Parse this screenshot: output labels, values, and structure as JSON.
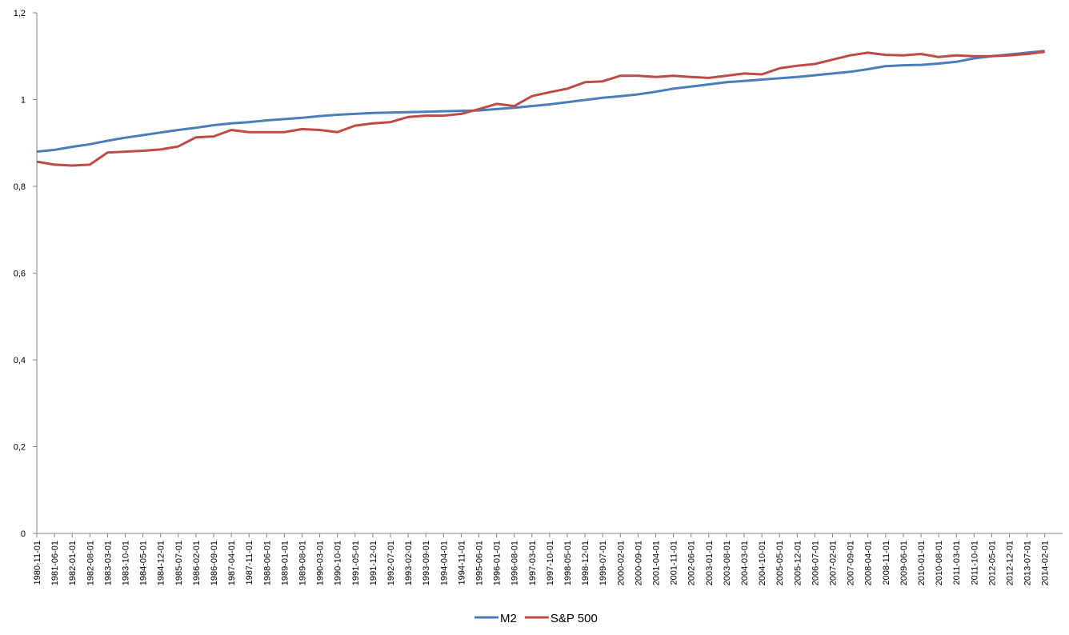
{
  "chart_data": {
    "type": "line",
    "categories": [
      "1980-11-01",
      "1981-06-01",
      "1982-01-01",
      "1982-08-01",
      "1983-03-01",
      "1983-10-01",
      "1984-05-01",
      "1984-12-01",
      "1985-07-01",
      "1986-02-01",
      "1986-09-01",
      "1987-04-01",
      "1987-11-01",
      "1988-06-01",
      "1989-01-01",
      "1989-08-01",
      "1990-03-01",
      "1990-10-01",
      "1991-05-01",
      "1991-12-01",
      "1992-07-01",
      "1993-02-01",
      "1993-09-01",
      "1994-04-01",
      "1994-11-01",
      "1995-06-01",
      "1996-01-01",
      "1996-08-01",
      "1997-03-01",
      "1997-10-01",
      "1998-05-01",
      "1998-12-01",
      "1999-07-01",
      "2000-02-01",
      "2000-09-01",
      "2001-04-01",
      "2001-11-01",
      "2002-06-01",
      "2003-01-01",
      "2003-08-01",
      "2004-03-01",
      "2004-10-01",
      "2005-05-01",
      "2005-12-01",
      "2006-07-01",
      "2007-02-01",
      "2007-09-01",
      "2008-04-01",
      "2008-11-01",
      "2009-06-01",
      "2010-01-01",
      "2010-08-01",
      "2011-03-01",
      "2011-10-01",
      "2012-05-01",
      "2012-12-01",
      "2013-07-01",
      "2014-02-01"
    ],
    "series": [
      {
        "name": "M2",
        "color": "#4a7ebb",
        "values": [
          0.88,
          0.884,
          0.891,
          0.897,
          0.905,
          0.912,
          0.918,
          0.924,
          0.93,
          0.935,
          0.941,
          0.945,
          0.948,
          0.952,
          0.955,
          0.958,
          0.962,
          0.965,
          0.967,
          0.969,
          0.97,
          0.971,
          0.972,
          0.973,
          0.974,
          0.975,
          0.978,
          0.981,
          0.985,
          0.989,
          0.994,
          0.999,
          1.004,
          1.008,
          1.012,
          1.018,
          1.025,
          1.03,
          1.035,
          1.04,
          1.043,
          1.046,
          1.049,
          1.052,
          1.056,
          1.06,
          1.064,
          1.07,
          1.077,
          1.079,
          1.08,
          1.083,
          1.087,
          1.095,
          1.1,
          1.104,
          1.108,
          1.112
        ]
      },
      {
        "name": "S&P 500",
        "color": "#be4b48",
        "values": [
          0.857,
          0.85,
          0.848,
          0.85,
          0.878,
          0.88,
          0.882,
          0.885,
          0.892,
          0.913,
          0.915,
          0.93,
          0.925,
          0.925,
          0.925,
          0.932,
          0.93,
          0.925,
          0.94,
          0.945,
          0.948,
          0.96,
          0.963,
          0.963,
          0.967,
          0.978,
          0.99,
          0.985,
          1.008,
          1.017,
          1.025,
          1.04,
          1.042,
          1.055,
          1.055,
          1.052,
          1.055,
          1.052,
          1.05,
          1.055,
          1.06,
          1.058,
          1.072,
          1.078,
          1.082,
          1.092,
          1.102,
          1.108,
          1.103,
          1.102,
          1.105,
          1.098,
          1.102,
          1.1,
          1.1,
          1.102,
          1.105,
          1.11
        ]
      }
    ],
    "ylim": [
      0,
      1.2
    ],
    "yticks": [
      0,
      {
        "value": 0.2,
        "label": "0,2"
      },
      {
        "value": 0.4,
        "label": "0,4"
      },
      {
        "value": 0.6,
        "label": "0,6"
      },
      {
        "value": 0.8,
        "label": "0,8"
      },
      1,
      {
        "value": 1.2,
        "label": "1,2"
      }
    ],
    "grid": false,
    "legend": "bottom"
  }
}
